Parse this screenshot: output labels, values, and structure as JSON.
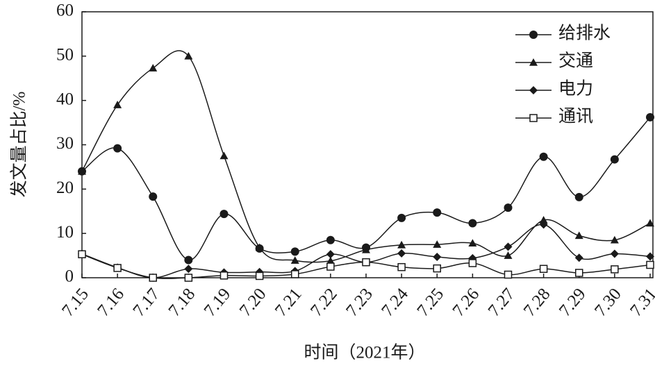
{
  "chart_data": {
    "type": "line",
    "xlabel": "时间（2021年）",
    "ylabel": "发文量占比/%",
    "categories": [
      "7.15",
      "7.16",
      "7.17",
      "7.18",
      "7.19",
      "7.20",
      "7.21",
      "7.22",
      "7.23",
      "7.24",
      "7.25",
      "7.26",
      "7.27",
      "7.28",
      "7.29",
      "7.30",
      "7.31"
    ],
    "series": [
      {
        "name": "给排水",
        "color": "#1a1a1a",
        "marker": "circle",
        "values": [
          24,
          29.2,
          18.3,
          4,
          14.4,
          6.6,
          5.9,
          8.5,
          6.8,
          13.5,
          14.7,
          12.3,
          15.8,
          27.3,
          18.2,
          26.7,
          36.2
        ]
      },
      {
        "name": "交通",
        "color": "#1a1a1a",
        "marker": "triangle",
        "values": [
          24,
          39,
          47.3,
          50,
          27.5,
          6.8,
          3.9,
          3.8,
          6.3,
          7.4,
          7.5,
          7.8,
          5,
          13,
          9.5,
          8.5,
          12.3
        ]
      },
      {
        "name": "电力",
        "color": "#1a1a1a",
        "marker": "diamond",
        "values": [
          5.4,
          2.3,
          0,
          2,
          1.2,
          1.3,
          1.5,
          5.3,
          3.5,
          5.5,
          4.7,
          4.4,
          7,
          12,
          4.5,
          5.4,
          4.8
        ]
      },
      {
        "name": "通讯",
        "color": "#1a1a1a",
        "marker": "square",
        "values": [
          5.3,
          2.2,
          0,
          0,
          0.5,
          0.4,
          0.8,
          2.5,
          3.5,
          2.4,
          2.1,
          3.3,
          0.7,
          2,
          1.1,
          1.9,
          2.9
        ]
      }
    ],
    "ylim": [
      0,
      60
    ],
    "yticks": [
      0,
      10,
      20,
      30,
      40,
      50,
      60
    ],
    "grid": false,
    "legend": "top-right",
    "smooth": true
  }
}
